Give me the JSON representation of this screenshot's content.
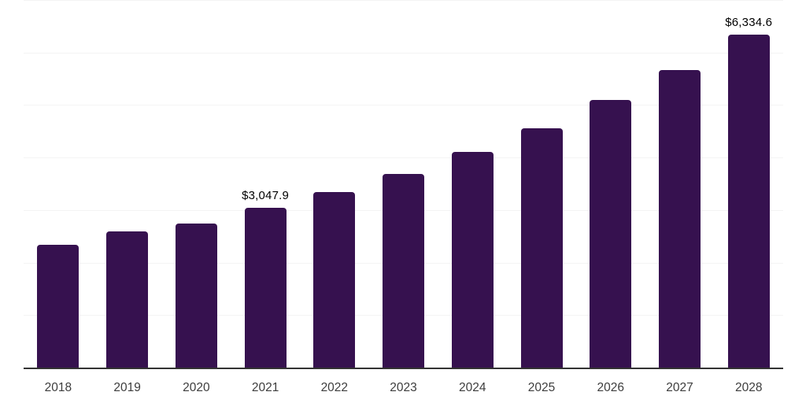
{
  "chart_data": {
    "type": "bar",
    "title": "",
    "xlabel": "",
    "ylabel": "",
    "categories": [
      "2018",
      "2019",
      "2020",
      "2021",
      "2022",
      "2023",
      "2024",
      "2025",
      "2026",
      "2027",
      "2028"
    ],
    "values": [
      2340,
      2600,
      2740,
      3047.9,
      3350,
      3690,
      4100,
      4560,
      5090,
      5665,
      6334.6
    ],
    "data_labels": {
      "2021": "$3,047.9",
      "2028": "$6,334.6"
    },
    "ylim": [
      0,
      7000
    ],
    "gridline_step": 1000,
    "grid": "horizontal-only",
    "legend": "none",
    "y_tick_labels": "none",
    "colors": {
      "bar": "#36114F",
      "axis_line": "#333333",
      "gridline": "#f4f4f4",
      "data_label": "#000000",
      "x_tick_label": "#3d3d3d",
      "background": "#ffffff"
    }
  }
}
